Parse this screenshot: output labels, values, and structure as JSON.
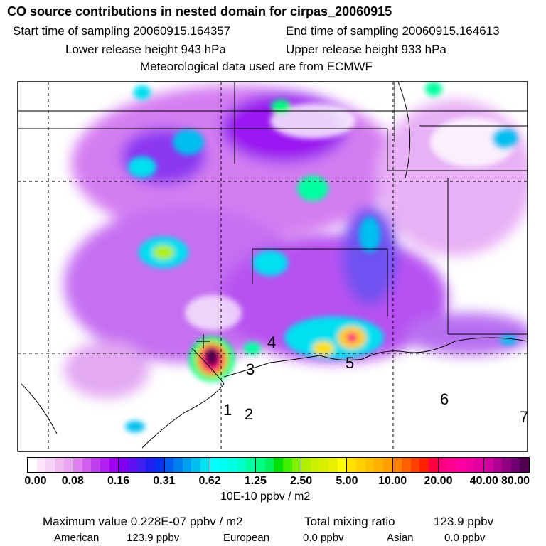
{
  "header": {
    "title": "CO  source contributions in nested domain for cirpas_20060915",
    "start_label": "Start time of sampling 20060915.164357",
    "end_label": "End time of sampling 20060915.164613",
    "lower_label": "Lower release height  943 hPa",
    "upper_label": "Upper release height  933 hPa",
    "met_label": "Meteorological data used are from ECMWF"
  },
  "map_labels": [
    "1",
    "2",
    "3",
    "4",
    "5",
    "6",
    "7"
  ],
  "colorbar": {
    "ticks": [
      "0.00",
      "0.08",
      "0.16",
      "0.31",
      "0.62",
      "1.25",
      "2.50",
      "5.00",
      "10.00",
      "20.00",
      "40.00",
      "80.00"
    ],
    "units": "10E-10 ppbv / m2",
    "colors": [
      [
        "#ffffff",
        "#fbe6fb",
        "#f6d2f6",
        "#f0bcf0",
        "#eaa6f2"
      ],
      [
        "#e080f0",
        "#d060f0",
        "#c040f0",
        "#b020f0",
        "#a000f0"
      ],
      [
        "#8000f0",
        "#6010f0",
        "#4020f0",
        "#2020f0",
        "#0030f0"
      ],
      [
        "#0060f0",
        "#0080f0",
        "#00a0f0",
        "#00c0f0",
        "#00e0f0"
      ],
      [
        "#00ffff",
        "#00fff0",
        "#00ffe0",
        "#00ffc8",
        "#00ffa0"
      ],
      [
        "#00ff80",
        "#00f060",
        "#00e000",
        "#40f000",
        "#80f000"
      ],
      [
        "#b0f000",
        "#c8f000",
        "#d8f000",
        "#e8f000",
        "#ffff00"
      ],
      [
        "#ffe000",
        "#ffd000",
        "#ffc000",
        "#ffb000",
        "#ffa000"
      ],
      [
        "#ff8000",
        "#ff6000",
        "#ff4000",
        "#ff2000",
        "#ff0040"
      ],
      [
        "#ff0080",
        "#ff0090",
        "#ff00a0",
        "#f000a0",
        "#e000a0"
      ],
      [
        "#d000a0",
        "#b00090",
        "#900080",
        "#700070",
        "#500050"
      ]
    ]
  },
  "footer": {
    "max_label": "Maximum value  0.228E-07 ppbv / m2",
    "total_label": "Total mixing ratio",
    "total_value": "123.9 ppbv",
    "american_label": "American",
    "american_value": "123.9 ppbv",
    "european_label": "European",
    "european_value": "0.0 ppbv",
    "asian_label": "Asian",
    "asian_value": "0.0 ppbv"
  }
}
